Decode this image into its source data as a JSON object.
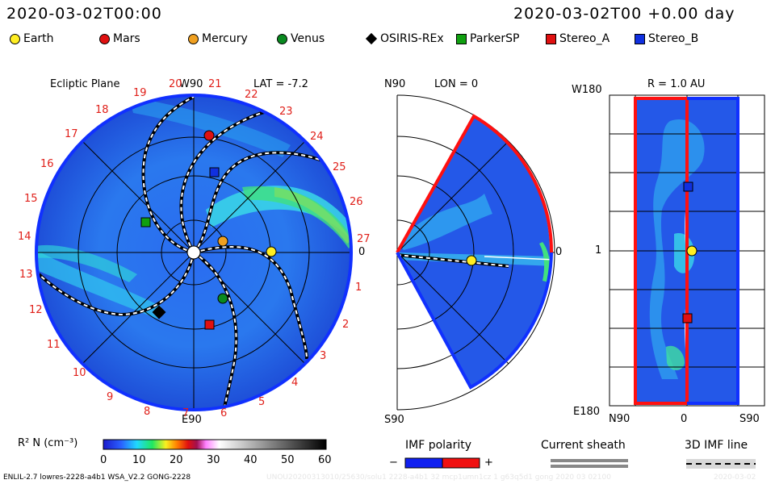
{
  "header": {
    "left_time": "2020-03-02T00:00",
    "right_time": "2020-03-02T00 +0.00 day"
  },
  "legend": [
    {
      "name": "Earth",
      "shape": "circle",
      "color": "#ffee22"
    },
    {
      "name": "Mars",
      "shape": "circle",
      "color": "#e01010"
    },
    {
      "name": "Mercury",
      "shape": "circle",
      "color": "#f0a020"
    },
    {
      "name": "Venus",
      "shape": "circle",
      "color": "#0a8a20"
    },
    {
      "name": "OSIRIS-REx",
      "shape": "diamond",
      "color": "#000000"
    },
    {
      "name": "ParkerSP",
      "shape": "square",
      "color": "#10a010"
    },
    {
      "name": "Stereo_A",
      "shape": "square",
      "color": "#e01010"
    },
    {
      "name": "Stereo_B",
      "shape": "square",
      "color": "#1030e0"
    }
  ],
  "panels": {
    "ecliptic": {
      "title": "Ecliptic Plane",
      "top_label": "W90",
      "lat_label": "LAT = -7.2",
      "bottom_label": "E90",
      "right_label": "0",
      "sector_numbers": [
        "19",
        "20",
        "21",
        "22",
        "23",
        "24",
        "25",
        "26",
        "27",
        "1",
        "2",
        "3",
        "4",
        "5",
        "6",
        "7",
        "8",
        "9",
        "10",
        "11",
        "12",
        "13",
        "14",
        "15",
        "16",
        "17",
        "18"
      ]
    },
    "meridional": {
      "top_label": "N90",
      "lon_label": "LON = 0",
      "bottom_label": "S90",
      "right_label": "0"
    },
    "radial": {
      "title": "R = 1.0 AU",
      "top_left_label": "W180",
      "mid_left_label": "1",
      "bottom_left_label": "E180",
      "bottom_labels": [
        "N90",
        "0",
        "S90"
      ]
    }
  },
  "colorbar": {
    "label": "R² N (cm⁻³)",
    "ticks": [
      "0",
      "10",
      "20",
      "30",
      "40",
      "50",
      "60"
    ]
  },
  "keys": {
    "imf_polarity": {
      "title": "IMF polarity",
      "minus": "−",
      "plus": "+",
      "negative_color": "#1020f0",
      "positive_color": "#f01010"
    },
    "current_sheath": {
      "title": "Current sheath"
    },
    "imf_line": {
      "title": "3D IMF line"
    }
  },
  "footer": {
    "model_info": "ENLIL-2.7 lowres-2228-a4b1 WSA_V2.2 GONG-2228",
    "run_id": "UNOU20200313010/25630/solu1 2228-a4b1 32 mcp1umn1cz 1 g63q5d1 gong 2020 03 02100",
    "date_stamp": "2020-03-02"
  }
}
